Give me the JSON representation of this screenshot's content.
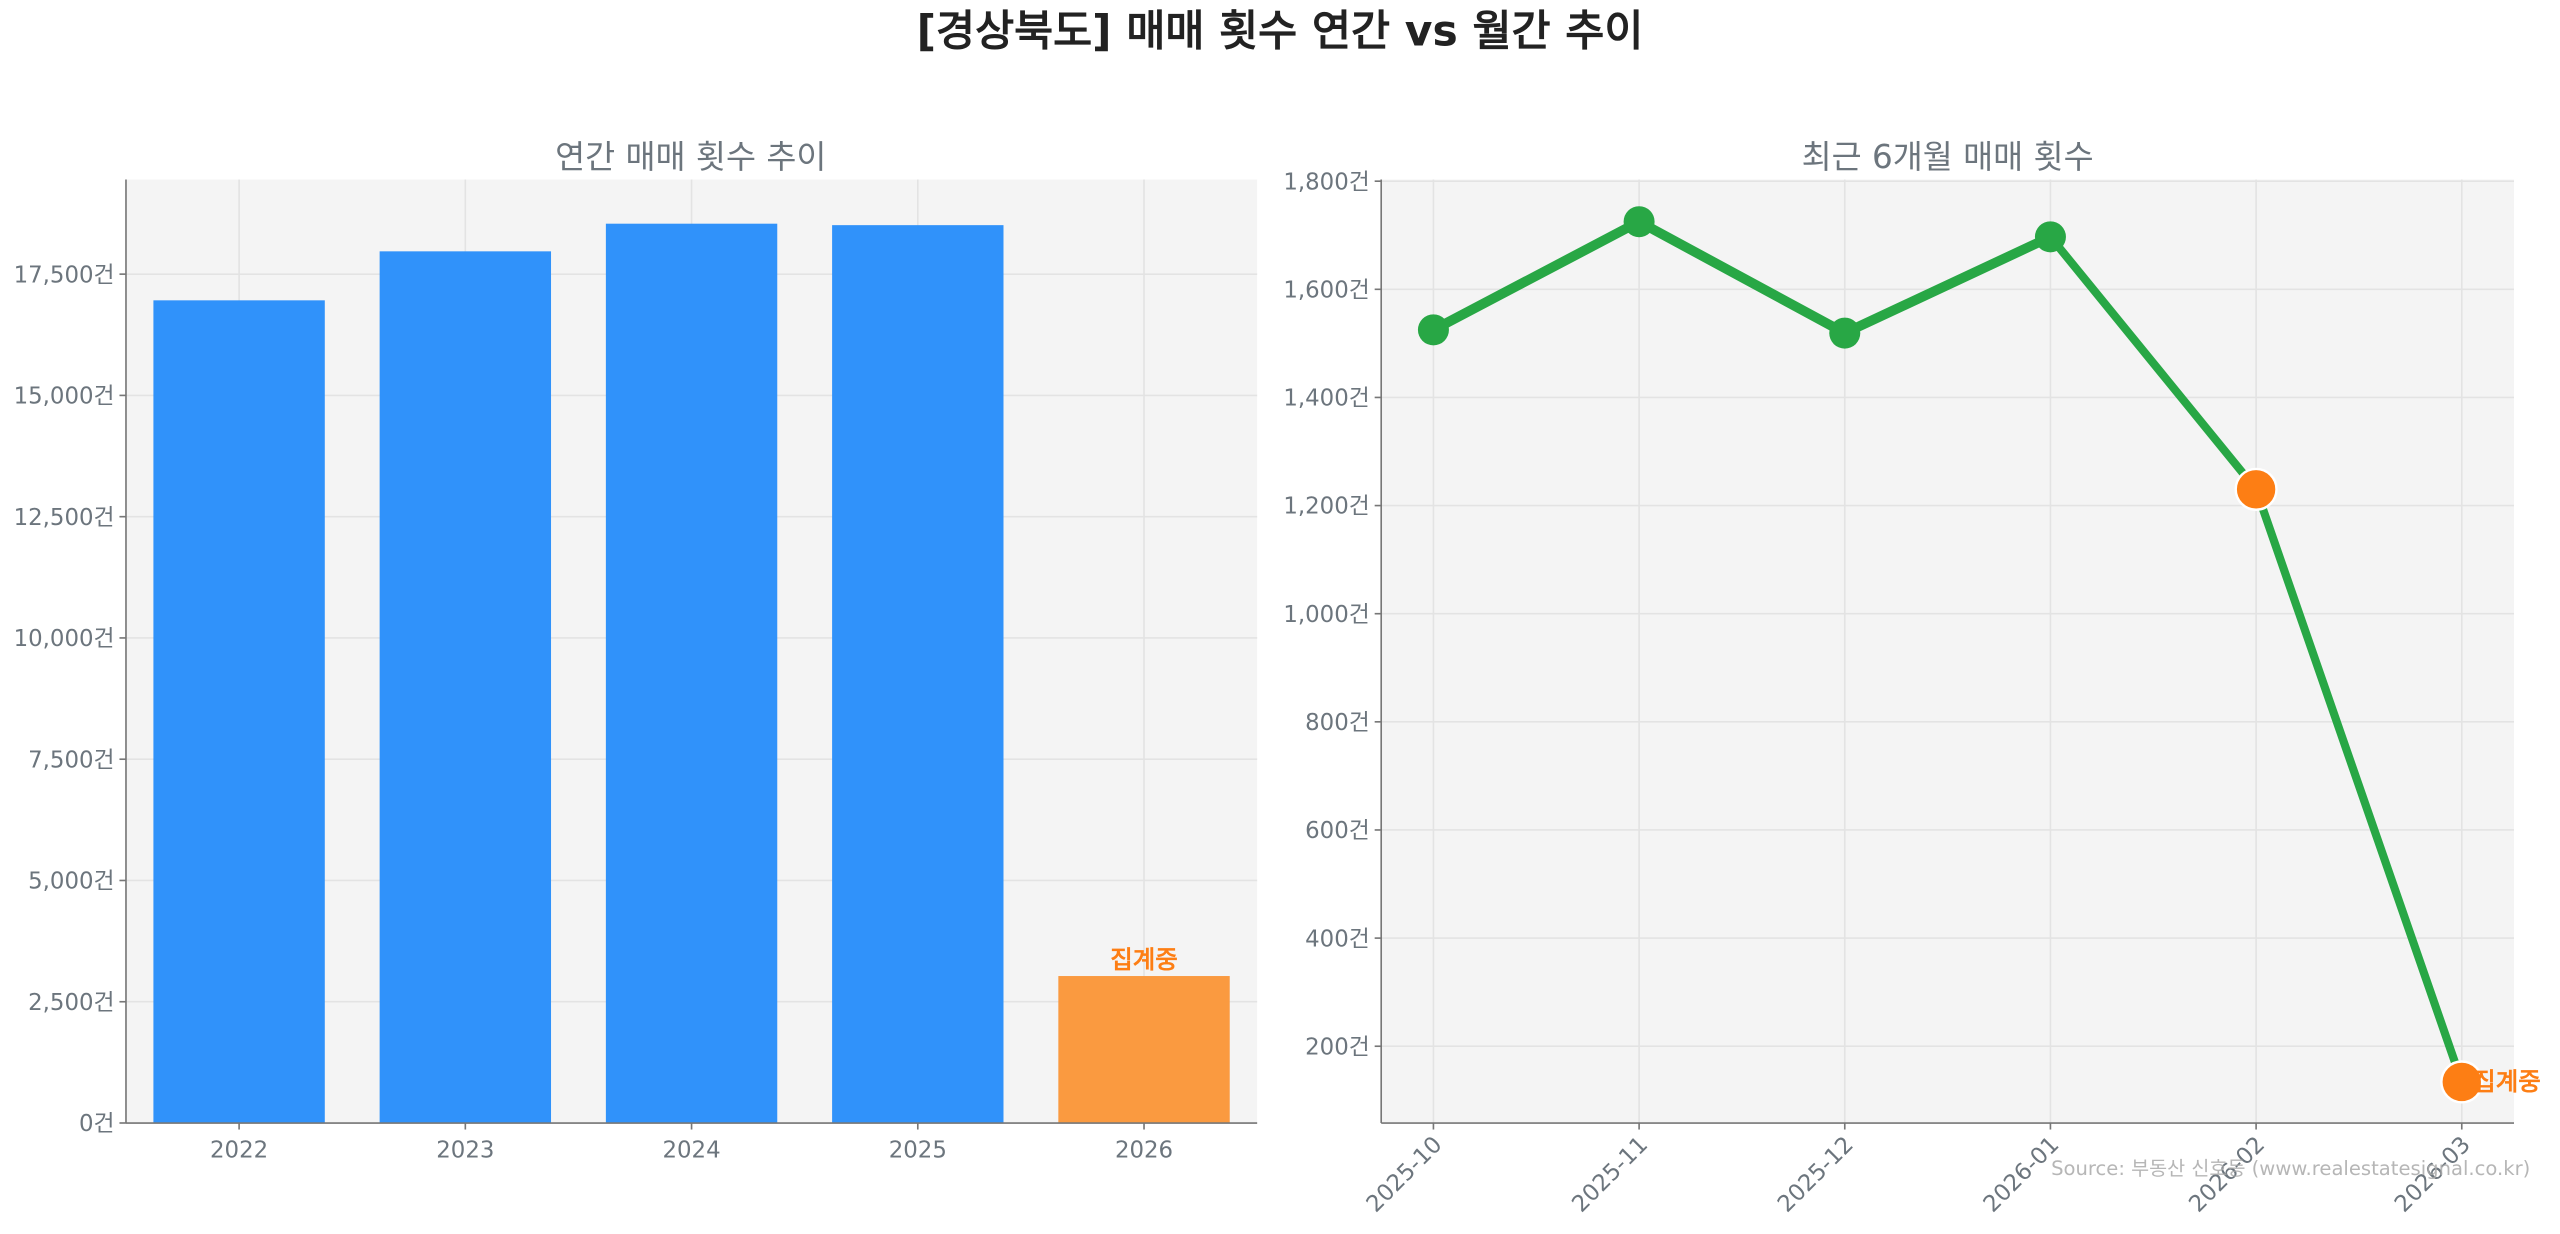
{
  "title": "[경상북도] 매매 횟수 연간 vs 월간 추이",
  "source": "Source: 부동산 신호등 (www.realestatesignal.co.kr)",
  "colors": {
    "bar": "#3092fa",
    "bar_partial": "#fa9a40",
    "line": "#28a745",
    "partial_marker": "#fd7e14",
    "partial_label": "#fd7e14",
    "plot_bg": "#f4f4f4",
    "text": "#6c757d"
  },
  "chart_data": [
    {
      "type": "bar",
      "title": "연간 매매 횟수 추이",
      "categories": [
        "2022",
        "2023",
        "2024",
        "2025",
        "2026"
      ],
      "values": [
        16960,
        17970,
        18540,
        18510,
        3030
      ],
      "partial": [
        false,
        false,
        false,
        false,
        true
      ],
      "partial_label": "집계중",
      "ylim": [
        0,
        19450
      ],
      "yticks": [
        0,
        2500,
        5000,
        7500,
        10000,
        12500,
        15000,
        17500
      ],
      "ytick_labels": [
        "0건",
        "2,500건",
        "5,000건",
        "7,500건",
        "10,000건",
        "12,500건",
        "15,000건",
        "17,500건"
      ],
      "grid": true
    },
    {
      "type": "line",
      "title": "최근 6개월 매매 횟수",
      "categories": [
        "2025-10",
        "2025-11",
        "2025-12",
        "2026-01",
        "2026-02",
        "2026-03"
      ],
      "values": [
        1525,
        1725,
        1519,
        1697,
        1230,
        134
      ],
      "partial": [
        false,
        false,
        false,
        false,
        true,
        true
      ],
      "partial_label": "집계중",
      "ylim": [
        58,
        1803
      ],
      "yticks": [
        200,
        400,
        600,
        800,
        1000,
        1200,
        1400,
        1600,
        1800
      ],
      "ytick_labels": [
        "200건",
        "400건",
        "600건",
        "800건",
        "1,000건",
        "1,200건",
        "1,400건",
        "1,600건",
        "1,800건"
      ],
      "grid": true
    }
  ]
}
